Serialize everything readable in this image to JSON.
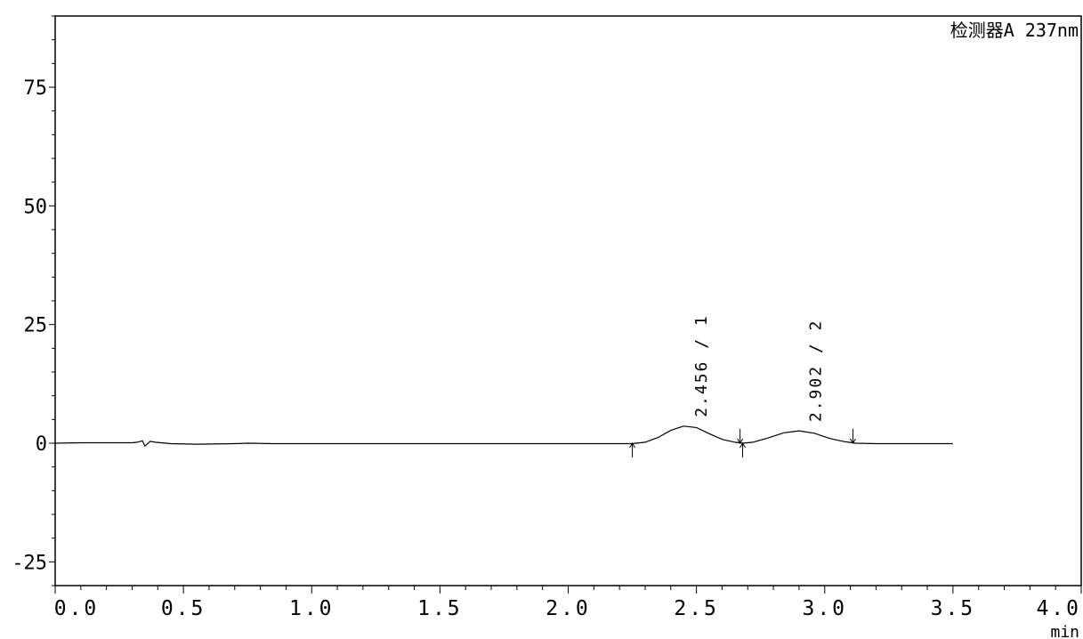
{
  "chart_data": {
    "type": "line",
    "title": "",
    "detector_label": "检测器A 237nm",
    "xlabel": "min",
    "ylabel": "",
    "xlim": [
      0.0,
      4.0
    ],
    "ylim": [
      -30,
      90
    ],
    "x_ticks": [
      0.0,
      0.5,
      1.0,
      1.5,
      2.0,
      2.5,
      3.0,
      3.5,
      4.0
    ],
    "x_tick_labels": [
      "0.0",
      "0.5",
      "1.0",
      "1.5",
      "2.0",
      "2.5",
      "3.0",
      "3.5",
      "4.0"
    ],
    "y_ticks": [
      -25,
      0,
      25,
      50,
      75
    ],
    "y_tick_labels": [
      "-25",
      "0",
      "25",
      "50",
      "75"
    ],
    "grid": false,
    "series": [
      {
        "x": [
          0.0,
          0.1,
          0.2,
          0.3,
          0.32,
          0.34,
          0.35,
          0.37,
          0.39,
          0.45,
          0.55,
          0.7,
          0.75,
          0.85,
          1.0,
          1.5,
          2.0,
          2.25,
          2.3,
          2.35,
          2.4,
          2.45,
          2.5,
          2.55,
          2.6,
          2.65,
          2.68,
          2.72,
          2.78,
          2.84,
          2.9,
          2.96,
          3.02,
          3.08,
          3.12,
          3.2,
          3.3,
          3.4,
          3.5
        ],
        "y": [
          0.0,
          0.1,
          0.1,
          0.1,
          0.2,
          0.5,
          -0.6,
          0.4,
          0.2,
          -0.1,
          -0.2,
          -0.1,
          0.0,
          -0.1,
          -0.1,
          -0.1,
          -0.1,
          -0.1,
          0.2,
          1.2,
          2.7,
          3.6,
          3.3,
          2.0,
          0.8,
          0.2,
          0.0,
          0.2,
          1.1,
          2.2,
          2.6,
          2.1,
          1.0,
          0.3,
          0.0,
          -0.1,
          -0.1,
          -0.1,
          -0.1
        ]
      }
    ],
    "peaks": [
      {
        "label": "2.456 / 1",
        "rt": 2.456,
        "apex": 3.6,
        "start": 2.25,
        "end": 2.67
      },
      {
        "label": "2.902 / 2",
        "rt": 2.902,
        "apex": 2.6,
        "end_marker_start": 2.68,
        "end": 3.11
      }
    ]
  }
}
